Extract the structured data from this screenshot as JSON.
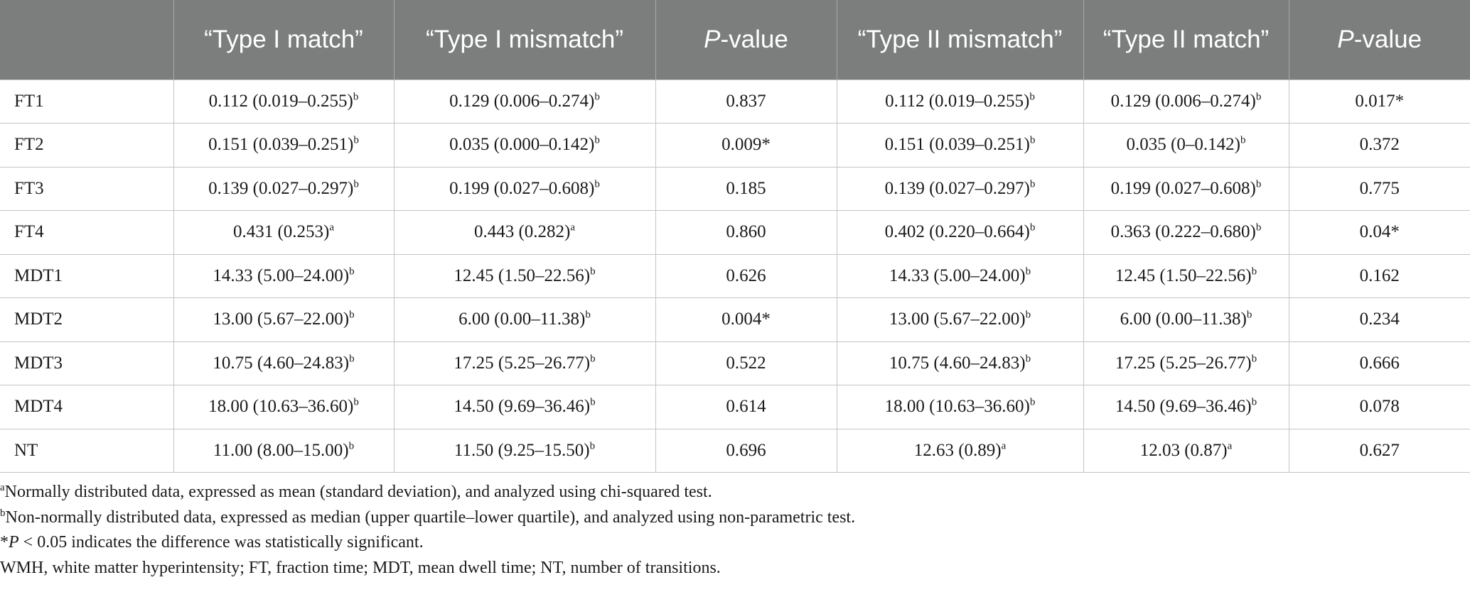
{
  "table": {
    "headers": [
      "",
      "“Type I match”",
      "“Type I mismatch”",
      "P-value",
      "“Type II mismatch”",
      "“Type II match”",
      "P-value"
    ],
    "header_p_letter": "P",
    "header_p_rest": "-value",
    "rows": [
      {
        "label": "FT1",
        "cells": [
          {
            "v": "0.112 (0.019–0.255)",
            "s": "b"
          },
          {
            "v": "0.129 (0.006–0.274)",
            "s": "b"
          },
          {
            "v": "0.837",
            "s": ""
          },
          {
            "v": "0.112 (0.019–0.255)",
            "s": "b"
          },
          {
            "v": "0.129 (0.006–0.274)",
            "s": "b"
          },
          {
            "v": "0.017*",
            "s": ""
          }
        ]
      },
      {
        "label": "FT2",
        "cells": [
          {
            "v": "0.151 (0.039–0.251)",
            "s": "b"
          },
          {
            "v": "0.035 (0.000–0.142)",
            "s": "b"
          },
          {
            "v": "0.009*",
            "s": ""
          },
          {
            "v": "0.151 (0.039–0.251)",
            "s": "b"
          },
          {
            "v": "0.035 (0–0.142)",
            "s": "b"
          },
          {
            "v": "0.372",
            "s": ""
          }
        ]
      },
      {
        "label": "FT3",
        "cells": [
          {
            "v": "0.139 (0.027–0.297)",
            "s": "b"
          },
          {
            "v": "0.199 (0.027–0.608)",
            "s": "b"
          },
          {
            "v": "0.185",
            "s": ""
          },
          {
            "v": "0.139 (0.027–0.297)",
            "s": "b"
          },
          {
            "v": "0.199 (0.027–0.608)",
            "s": "b"
          },
          {
            "v": "0.775",
            "s": ""
          }
        ]
      },
      {
        "label": "FT4",
        "cells": [
          {
            "v": "0.431 (0.253)",
            "s": "a"
          },
          {
            "v": "0.443 (0.282)",
            "s": "a"
          },
          {
            "v": "0.860",
            "s": ""
          },
          {
            "v": "0.402 (0.220–0.664)",
            "s": "b"
          },
          {
            "v": "0.363 (0.222–0.680)",
            "s": "b"
          },
          {
            "v": "0.04*",
            "s": ""
          }
        ]
      },
      {
        "label": "MDT1",
        "cells": [
          {
            "v": "14.33 (5.00–24.00)",
            "s": "b"
          },
          {
            "v": "12.45 (1.50–22.56)",
            "s": "b"
          },
          {
            "v": "0.626",
            "s": ""
          },
          {
            "v": "14.33 (5.00–24.00)",
            "s": "b"
          },
          {
            "v": "12.45 (1.50–22.56)",
            "s": "b"
          },
          {
            "v": "0.162",
            "s": ""
          }
        ]
      },
      {
        "label": "MDT2",
        "cells": [
          {
            "v": "13.00 (5.67–22.00)",
            "s": "b"
          },
          {
            "v": "6.00 (0.00–11.38)",
            "s": "b"
          },
          {
            "v": "0.004*",
            "s": ""
          },
          {
            "v": "13.00 (5.67–22.00)",
            "s": "b"
          },
          {
            "v": "6.00 (0.00–11.38)",
            "s": "b"
          },
          {
            "v": "0.234",
            "s": ""
          }
        ]
      },
      {
        "label": "MDT3",
        "cells": [
          {
            "v": "10.75 (4.60–24.83)",
            "s": "b"
          },
          {
            "v": "17.25 (5.25–26.77)",
            "s": "b"
          },
          {
            "v": "0.522",
            "s": ""
          },
          {
            "v": "10.75 (4.60–24.83)",
            "s": "b"
          },
          {
            "v": "17.25 (5.25–26.77)",
            "s": "b"
          },
          {
            "v": "0.666",
            "s": ""
          }
        ]
      },
      {
        "label": "MDT4",
        "cells": [
          {
            "v": "18.00 (10.63–36.60)",
            "s": "b"
          },
          {
            "v": "14.50 (9.69–36.46)",
            "s": "b"
          },
          {
            "v": "0.614",
            "s": ""
          },
          {
            "v": "18.00 (10.63–36.60)",
            "s": "b"
          },
          {
            "v": "14.50 (9.69–36.46)",
            "s": "b"
          },
          {
            "v": "0.078",
            "s": ""
          }
        ]
      },
      {
        "label": "NT",
        "cells": [
          {
            "v": "11.00 (8.00–15.00)",
            "s": "b"
          },
          {
            "v": "11.50 (9.25–15.50)",
            "s": "b"
          },
          {
            "v": "0.696",
            "s": ""
          },
          {
            "v": "12.63 (0.89)",
            "s": "a"
          },
          {
            "v": "12.03 (0.87)",
            "s": "a"
          },
          {
            "v": "0.627",
            "s": ""
          }
        ]
      }
    ]
  },
  "footnotes": {
    "a_mark": "a",
    "a_text": "Normally distributed data, expressed as mean (standard deviation), and analyzed using chi-squared test.",
    "b_mark": "b",
    "b_text": "Non-normally distributed data, expressed as median (upper quartile–lower quartile), and analyzed using non-parametric test.",
    "star_prefix": "*",
    "star_p": "P",
    "star_text": " < 0.05 indicates the difference was statistically significant.",
    "abbreviations": "WMH, white matter hyperintensity; FT, fraction time; MDT, mean dwell time; NT, number of transitions."
  },
  "colors": {
    "header_bg": "#7c7e7d",
    "header_text": "#ffffff",
    "grid": "#c4c4c4"
  }
}
